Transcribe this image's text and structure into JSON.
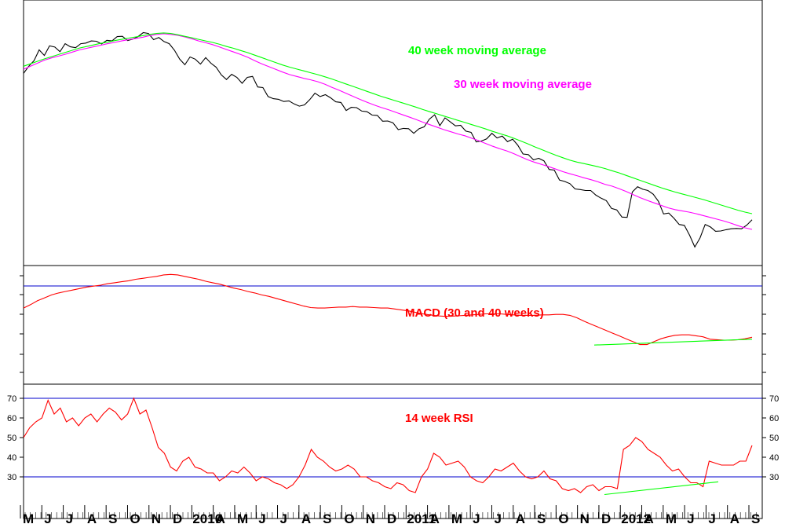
{
  "chart_data": [
    {
      "type": "line",
      "panel": "price",
      "title": "",
      "annotations": [
        "40 week moving average",
        "30 week moving average"
      ],
      "x_start_week": 0,
      "series": [
        {
          "name": "",
          "color": "#000000",
          "values": [
            62.7,
            65,
            66.8,
            70.3,
            68.5,
            71.6,
            71.2,
            69.7,
            72.3,
            71.3,
            71,
            72.3,
            72.5,
            73.2,
            73.1,
            72.2,
            73.4,
            73.2,
            74.6,
            74.7,
            73.3,
            73.8,
            74.6,
            75.9,
            75.6,
            73.6,
            74.3,
            73,
            72.3,
            70.2,
            67.3,
            65.5,
            68,
            67.3,
            65.7,
            67.8,
            66,
            64.7,
            62.2,
            60.7,
            62.4,
            61.4,
            59.5,
            61.4,
            61.7,
            58.3,
            58.1,
            55.2,
            54.5,
            54.3,
            53.6,
            53.8,
            52.8,
            52.1,
            52.5,
            54.2,
            56.3,
            55.2,
            55.8,
            54.8,
            53.5,
            53.3,
            50.7,
            51.7,
            51.6,
            50.5,
            50.3,
            49.2,
            49.1,
            47.2,
            47.3,
            46.7,
            44.5,
            44.9,
            44.8,
            43.3,
            44.8,
            45.4,
            47.9,
            49.3,
            45.8,
            48.3,
            47,
            45.7,
            45.9,
            44,
            43.6,
            40.5,
            40.8,
            41.5,
            43.3,
            41.8,
            42.4,
            40.6,
            41.4,
            39.4,
            36.6,
            36.4,
            34.7,
            35.2,
            34.4,
            31.6,
            31.4,
            28.2,
            27.7,
            27,
            25.3,
            25.1,
            24.8,
            24.8,
            23.3,
            22.3,
            21.5,
            19,
            18.5,
            16.2,
            16.1,
            24.3,
            26,
            25.2,
            24.8,
            23.6,
            21.3,
            17.2,
            17.5,
            15.8,
            13.8,
            13.5,
            10.3,
            6.5,
            9.4,
            13.8,
            13,
            11.6,
            11.7,
            12.1,
            12.4,
            12.5,
            12.4,
            13.6,
            15.3
          ]
        },
        {
          "name": "",
          "color": "#ff00ff",
          "values": [
            64,
            65,
            66,
            67,
            67.7,
            68.3,
            68.9,
            69.6,
            70.3,
            70.8,
            71.3,
            71.8,
            72.3,
            72.7,
            73.2,
            73.6,
            74,
            74.4,
            74.9,
            75.3,
            75.5,
            75.3,
            75,
            74.5,
            73.9,
            73.2,
            72.6,
            72,
            71.2,
            70.4,
            69.6,
            68.8,
            67.9,
            66.8,
            65.8,
            64.9,
            64,
            63.1,
            62.3,
            61.7,
            61.1,
            60.6,
            60,
            59.2,
            58.2,
            57.3,
            56.3,
            55.3,
            54.3,
            53.4,
            52.5,
            51.7,
            51,
            50.2,
            49.4,
            48.6,
            47.8,
            46.9,
            46.1,
            45.3,
            44.5,
            43.8,
            43.1,
            42.5,
            41.7,
            40.9,
            40,
            39.1,
            38.3,
            37.6,
            36.7,
            35.7,
            34.7,
            33.9,
            33.2,
            32.5,
            31.7,
            30.9,
            30.2,
            29.6,
            28.9,
            28.3,
            27.6,
            26.8,
            26.2,
            25.4,
            24.5,
            23.5,
            22.5,
            21.6,
            20.8,
            20,
            19.2,
            18.6,
            18.2,
            17.8,
            17.3,
            16.7,
            16.1,
            15.5,
            14.9,
            14.2,
            13.4,
            12.7,
            12.2
          ]
        },
        {
          "name": "",
          "color": "#00ff00",
          "values": [
            65,
            65.8,
            66.6,
            67.4,
            68.1,
            68.8,
            69.5,
            70.2,
            70.9,
            71.4,
            71.9,
            72.4,
            72.8,
            73.3,
            73.7,
            74.1,
            74.5,
            74.9,
            75.3,
            75.6,
            75.8,
            75.6,
            75.2,
            74.7,
            74.2,
            73.7,
            73.2,
            72.7,
            72.1,
            71.4,
            70.8,
            70.1,
            69.4,
            68.6,
            67.8,
            67,
            66.2,
            65.4,
            64.7,
            64.1,
            63.5,
            62.9,
            62.3,
            61.6,
            60.9,
            60.1,
            59.3,
            58.5,
            57.7,
            56.9,
            56.1,
            55.3,
            54.6,
            53.9,
            53.2,
            52.5,
            51.8,
            51,
            50.3,
            49.6,
            48.9,
            48.2,
            47.5,
            46.8,
            46.1,
            45.4,
            44.7,
            43.9,
            43.2,
            42.5,
            41.7,
            40.8,
            39.9,
            38.9,
            38,
            37.1,
            36.2,
            35.4,
            34.6,
            34,
            33.5,
            33,
            32.5,
            31.9,
            31.2,
            30.5,
            29.7,
            28.9,
            28.1,
            27.3,
            26.5,
            25.7,
            25,
            24.3,
            23.7,
            23.1,
            22.5,
            21.9,
            21.2,
            20.5,
            19.8,
            19.1,
            18.4,
            17.8,
            17.3
          ]
        }
      ]
    },
    {
      "type": "line",
      "panel": "macd",
      "title": "MACD (30 and 40 weeks)",
      "series": [
        {
          "name": "",
          "color": "#ff0000",
          "values": [
            0.45,
            0.52,
            0.6,
            0.66,
            0.72,
            0.76,
            0.79,
            0.82,
            0.85,
            0.88,
            0.9,
            0.92,
            0.95,
            0.97,
            0.99,
            1.01,
            1.04,
            1.06,
            1.08,
            1.1,
            1.13,
            1.14,
            1.13,
            1.1,
            1.07,
            1.04,
            1,
            0.97,
            0.94,
            0.9,
            0.86,
            0.83,
            0.79,
            0.76,
            0.72,
            0.69,
            0.65,
            0.61,
            0.57,
            0.53,
            0.49,
            0.46,
            0.45,
            0.45,
            0.46,
            0.47,
            0.47,
            0.48,
            0.47,
            0.47,
            0.46,
            0.45,
            0.45,
            0.43,
            0.41,
            0.39,
            0.36,
            0.33,
            0.31,
            0.29,
            0.28,
            0.28,
            0.29,
            0.3,
            0.31,
            0.32,
            0.33,
            0.33,
            0.33,
            0.32,
            0.31,
            0.3,
            0.3,
            0.3,
            0.31,
            0.31,
            0.32,
            0.32,
            0.3,
            0.25,
            0.18,
            0.12,
            0.06,
            0,
            -0.06,
            -0.12,
            -0.18,
            -0.24,
            -0.3,
            -0.3,
            -0.24,
            -0.18,
            -0.14,
            -0.11,
            -0.1,
            -0.1,
            -0.12,
            -0.14,
            -0.19,
            -0.2,
            -0.21,
            -0.21,
            -0.2,
            -0.18,
            -0.15
          ]
        },
        {
          "name": "",
          "color": "#00ff00",
          "values": [
            -0.31,
            -0.19
          ]
        }
      ]
    },
    {
      "type": "line",
      "panel": "rsi",
      "title": "14 week RSI",
      "y_ticks": [
        30,
        40,
        50,
        60,
        70
      ],
      "reference_lines": [
        70,
        30
      ],
      "x_tick_labels": [
        "M",
        "J",
        "J",
        "A",
        "S",
        "O",
        "N",
        "D",
        "2010",
        "A",
        "M",
        "J",
        "J",
        "A",
        "S",
        "O",
        "N",
        "D",
        "2011",
        "A",
        "M",
        "J",
        "J",
        "A",
        "S",
        "O",
        "N",
        "D",
        "2012",
        "A",
        "M",
        "J",
        "J",
        "A",
        "S"
      ],
      "series": [
        {
          "name": "",
          "color": "#ff0000",
          "values": [
            50,
            55,
            58,
            60,
            69,
            62,
            65,
            58,
            60,
            56,
            60,
            62,
            58,
            62,
            65,
            63,
            59,
            62,
            70,
            62,
            64,
            55,
            45,
            42,
            35,
            33,
            38,
            40,
            35,
            34,
            32,
            32,
            28,
            30,
            33,
            32,
            35,
            32,
            28,
            30,
            29,
            27,
            26,
            24,
            26,
            30,
            36,
            44,
            40,
            38,
            35,
            33,
            34,
            36,
            34,
            30,
            30,
            28,
            27,
            25,
            24,
            27,
            26,
            23,
            22,
            30,
            34,
            42,
            40,
            36,
            37,
            38,
            35,
            30,
            28,
            27,
            30,
            34,
            33,
            35,
            37,
            33,
            30,
            29,
            30,
            33,
            29,
            28,
            24,
            23,
            24,
            22,
            25,
            26,
            23,
            25,
            25,
            24,
            44,
            46,
            50,
            48,
            44,
            42,
            40,
            36,
            33,
            34,
            30,
            27,
            27,
            25,
            38,
            37,
            36,
            36,
            36,
            38,
            38,
            46
          ]
        },
        {
          "name": "",
          "color": "#00ff00",
          "values": [
            21,
            27.5
          ]
        }
      ]
    }
  ]
}
